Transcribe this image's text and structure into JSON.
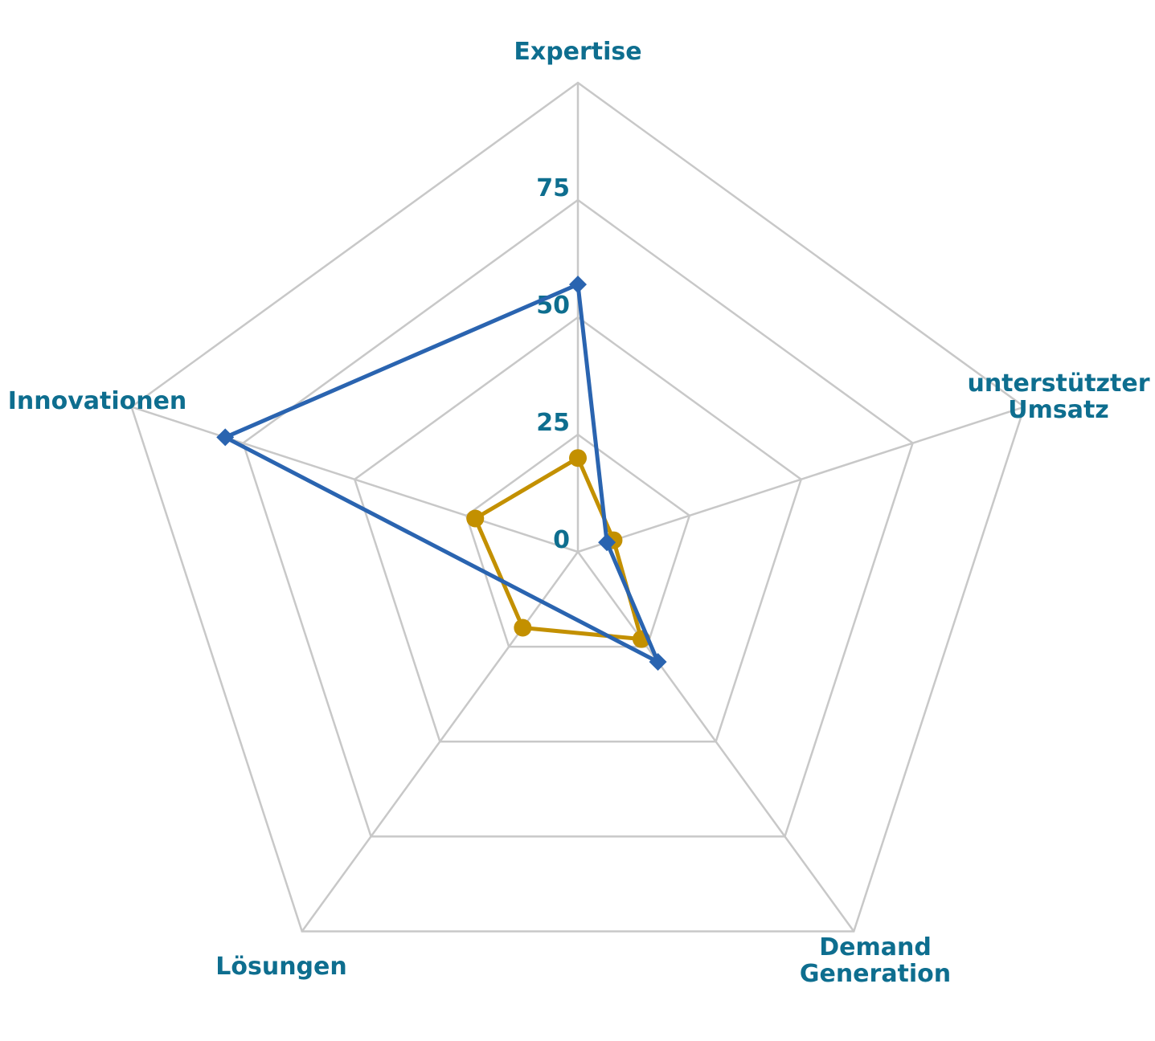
{
  "chart_data": {
    "type": "radar",
    "categories": [
      "Expertise",
      "unterstützter Umsatz",
      "Demand Generation",
      "Lösungen",
      "Innovationen"
    ],
    "category_lines": [
      [
        "Expertise"
      ],
      [
        "unterstützter",
        "Umsatz"
      ],
      [
        "Demand",
        "Generation"
      ],
      [
        "Lösungen"
      ],
      [
        "Innovationen"
      ]
    ],
    "rlim": [
      0,
      100
    ],
    "ticks": [
      0,
      25,
      50,
      75
    ],
    "grid_levels": [
      0,
      25,
      50,
      75,
      100
    ],
    "grid": true,
    "series": [
      {
        "values": [
          57,
          6.5,
          29,
          null,
          79
        ],
        "color": "#2a64b0",
        "marker": "diamond"
      },
      {
        "values": [
          20,
          8,
          23,
          20,
          23
        ],
        "color": "#c39000",
        "marker": "circle"
      }
    ],
    "colors": {
      "grid": "#c8c8c8",
      "labels": "#0e6e8f"
    }
  }
}
